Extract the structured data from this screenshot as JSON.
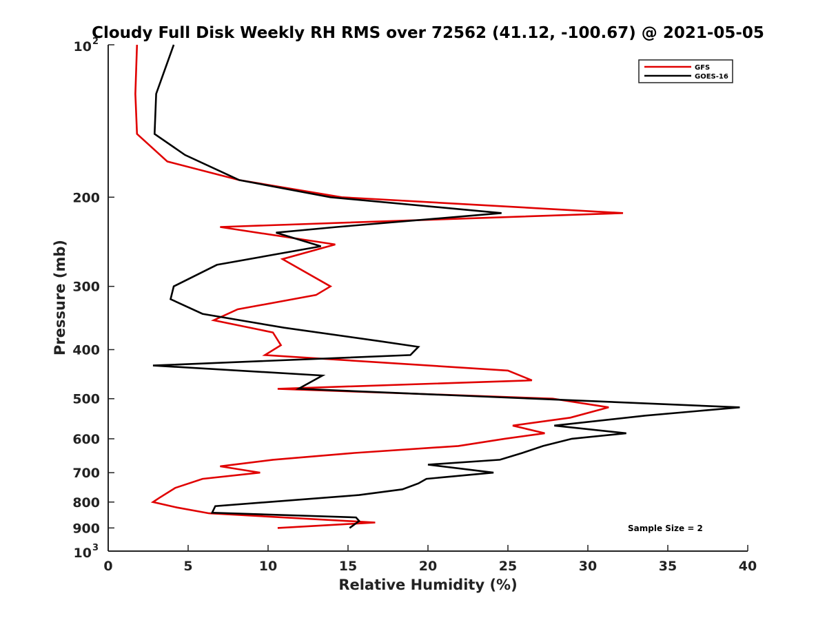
{
  "chart_data": {
    "type": "line",
    "title": "Cloudy Full Disk Weekly RH RMS over 72562 (41.12, -100.67) @ 2021-05-05",
    "xlabel": "Relative Humidity (%)",
    "ylabel": "Pressure (mb)",
    "xlim": [
      0,
      40
    ],
    "ylim": [
      1000,
      100
    ],
    "y_scale": "log",
    "y_reversed": true,
    "grid": false,
    "legend_position": "top-right",
    "x_ticks": [
      "0",
      "5",
      "10",
      "15",
      "20",
      "25",
      "30",
      "35",
      "40"
    ],
    "y_ticks": [
      {
        "value": 100,
        "base": "10",
        "exp": "2"
      },
      {
        "value": 200,
        "label": "200"
      },
      {
        "value": 300,
        "label": "300"
      },
      {
        "value": 400,
        "label": "400"
      },
      {
        "value": 500,
        "label": "500"
      },
      {
        "value": 600,
        "label": "600"
      },
      {
        "value": 700,
        "label": "700"
      },
      {
        "value": 800,
        "label": "800"
      },
      {
        "value": 900,
        "label": "900"
      },
      {
        "value": 1000,
        "base": "10",
        "exp": "3"
      }
    ],
    "series": [
      {
        "name": "GFS",
        "color": "#e00000",
        "points": [
          [
            1.8,
            100
          ],
          [
            1.7,
            125
          ],
          [
            1.8,
            150
          ],
          [
            3.7,
            170
          ],
          [
            8.2,
            185
          ],
          [
            14.6,
            200
          ],
          [
            32.2,
            215
          ],
          [
            7.0,
            229
          ],
          [
            14.2,
            248
          ],
          [
            10.9,
            265
          ],
          [
            13.9,
            300
          ],
          [
            13.0,
            312
          ],
          [
            8.1,
            333
          ],
          [
            6.6,
            350
          ],
          [
            10.3,
            370
          ],
          [
            10.8,
            392
          ],
          [
            9.8,
            410
          ],
          [
            25.0,
            440
          ],
          [
            26.5,
            460
          ],
          [
            10.6,
            478
          ],
          [
            27.8,
            500
          ],
          [
            31.3,
            520
          ],
          [
            28.9,
            545
          ],
          [
            25.3,
            565
          ],
          [
            27.3,
            585
          ],
          [
            24.8,
            600
          ],
          [
            21.9,
            620
          ],
          [
            15.4,
            640
          ],
          [
            10.3,
            660
          ],
          [
            7.0,
            680
          ],
          [
            9.5,
            700
          ],
          [
            5.9,
            720
          ],
          [
            4.2,
            750
          ],
          [
            3.2,
            785
          ],
          [
            2.8,
            800
          ],
          [
            4.3,
            820
          ],
          [
            6.3,
            842
          ],
          [
            16.7,
            878
          ],
          [
            10.6,
            900
          ]
        ]
      },
      {
        "name": "GOES-16",
        "color": "#000000",
        "points": [
          [
            4.1,
            100
          ],
          [
            3.0,
            125
          ],
          [
            2.9,
            150
          ],
          [
            4.8,
            165
          ],
          [
            8.2,
            185
          ],
          [
            13.9,
            200
          ],
          [
            24.6,
            215
          ],
          [
            14.3,
            229
          ],
          [
            10.5,
            235
          ],
          [
            13.3,
            250
          ],
          [
            6.8,
            272
          ],
          [
            4.1,
            300
          ],
          [
            3.9,
            318
          ],
          [
            5.9,
            340
          ],
          [
            11.0,
            362
          ],
          [
            17.0,
            385
          ],
          [
            19.4,
            395
          ],
          [
            18.9,
            410
          ],
          [
            2.8,
            430
          ],
          [
            13.4,
            450
          ],
          [
            11.9,
            478
          ],
          [
            39.5,
            520
          ],
          [
            33.6,
            540
          ],
          [
            27.9,
            565
          ],
          [
            32.4,
            585
          ],
          [
            29.0,
            600
          ],
          [
            27.2,
            620
          ],
          [
            25.9,
            640
          ],
          [
            24.5,
            660
          ],
          [
            20.0,
            675
          ],
          [
            24.1,
            700
          ],
          [
            19.9,
            720
          ],
          [
            19.4,
            735
          ],
          [
            18.4,
            755
          ],
          [
            15.7,
            775
          ],
          [
            6.7,
            815
          ],
          [
            6.5,
            840
          ],
          [
            15.5,
            858
          ],
          [
            15.7,
            872
          ],
          [
            15.1,
            900
          ]
        ]
      }
    ],
    "annotation": "Sample Size = 2"
  }
}
